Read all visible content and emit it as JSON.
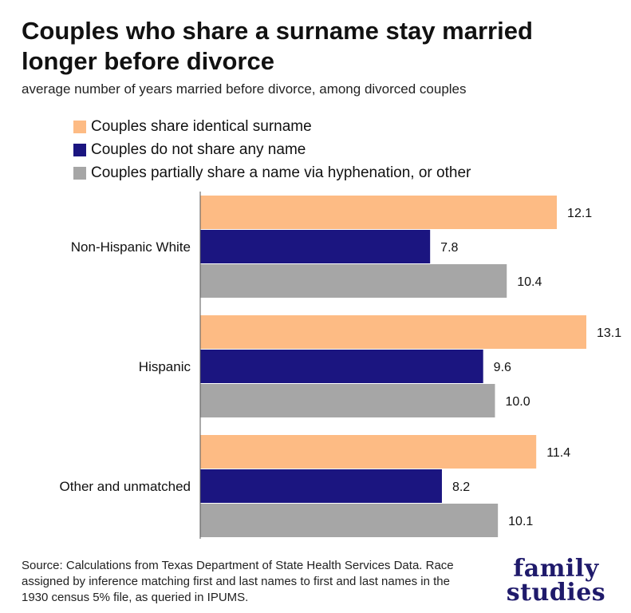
{
  "title": "Couples who share a surname stay married longer before divorce",
  "subtitle": "average number of years married before divorce, among divorced couples",
  "source": "Source: Calculations from Texas Department of State Health Services Data. Race assigned by inference matching first and last names to first and last names in the 1930 census 5% file, as queried in IPUMS.",
  "logo": {
    "line1": "family",
    "line2": "studies"
  },
  "colors": {
    "series1": "#FDBB84",
    "series2": "#1B1580",
    "series3": "#A6A6A6"
  },
  "chart_data": {
    "type": "bar",
    "orientation": "horizontal",
    "categories": [
      "Non-Hispanic White",
      "Hispanic",
      "Other and unmatched"
    ],
    "series": [
      {
        "name": "Couples share identical surname",
        "values": [
          12.1,
          13.1,
          11.4
        ]
      },
      {
        "name": "Couples do not share any name",
        "values": [
          7.8,
          9.6,
          8.2
        ]
      },
      {
        "name": "Couples partially share a name via hyphenation, or other",
        "values": [
          10.4,
          10.0,
          10.1
        ]
      }
    ],
    "data_labels": [
      [
        "12.1",
        "13.1",
        "11.4"
      ],
      [
        "7.8",
        "9.6",
        "8.2"
      ],
      [
        "10.4",
        "10.0",
        "10.1"
      ]
    ],
    "xlim": [
      0,
      13.1
    ],
    "grid": false,
    "legend_position": "top-left"
  }
}
